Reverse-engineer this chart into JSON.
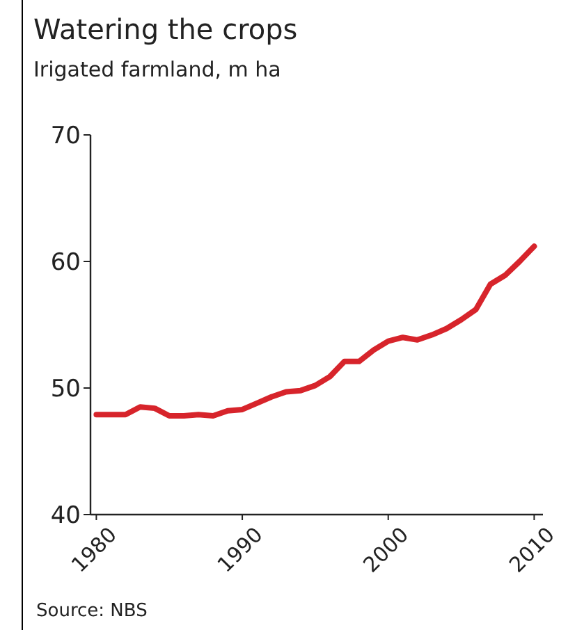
{
  "chart_data": {
    "type": "line",
    "title": "Watering the crops",
    "subtitle": "Irigated farmland, m ha",
    "annotations": [
      "Source: NBS"
    ],
    "x": [
      1980,
      1981,
      1982,
      1983,
      1984,
      1985,
      1986,
      1987,
      1988,
      1989,
      1990,
      1991,
      1992,
      1993,
      1994,
      1995,
      1996,
      1997,
      1998,
      1999,
      2000,
      2001,
      2002,
      2003,
      2004,
      2005,
      2006,
      2007,
      2008,
      2009,
      2010
    ],
    "series": [
      {
        "color": "#d7242b",
        "values": [
          47.9,
          47.9,
          47.9,
          48.5,
          48.4,
          47.8,
          47.8,
          47.9,
          47.8,
          48.2,
          48.3,
          48.8,
          49.3,
          49.7,
          49.8,
          50.2,
          50.9,
          52.1,
          52.1,
          53.0,
          53.7,
          54.0,
          53.8,
          54.2,
          54.7,
          55.4,
          56.2,
          58.2,
          58.9,
          60.0,
          61.2
        ]
      }
    ],
    "xlim": [
      1979.6,
      2010.6
    ],
    "xticks": [
      1980,
      1990,
      2000,
      2010
    ],
    "ylim": [
      40,
      70
    ],
    "yticks": [
      40,
      50,
      60,
      70
    ],
    "grid": false,
    "marker": "none",
    "line_style": "solid"
  }
}
